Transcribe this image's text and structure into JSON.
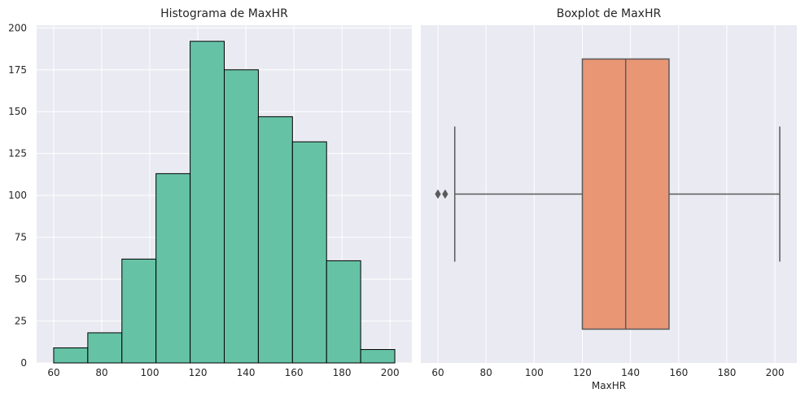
{
  "chart_data": [
    {
      "type": "histogram",
      "title": "Histograma de MaxHR",
      "xlabel": "",
      "ylabel": "",
      "bin_edges": [
        60,
        74.2,
        88.4,
        102.6,
        116.8,
        131,
        145.2,
        159.4,
        173.6,
        187.8,
        202
      ],
      "counts": [
        9,
        18,
        62,
        113,
        192,
        175,
        147,
        132,
        61,
        8
      ],
      "xlim": [
        52.9,
        209.1
      ],
      "ylim": [
        0,
        201.6
      ],
      "xticks": [
        60,
        80,
        100,
        120,
        140,
        160,
        180,
        200
      ],
      "yticks": [
        0,
        25,
        50,
        75,
        100,
        125,
        150,
        175,
        200
      ],
      "bar_color": "#66c2a5",
      "edge_color": "#000000",
      "grid": true,
      "background": "#eaeaf2"
    },
    {
      "type": "boxplot",
      "title": "Boxplot de MaxHR",
      "xlabel": "MaxHR",
      "ylabel": "",
      "min_whisker": 67,
      "q1": 120,
      "median": 138,
      "q3": 156,
      "max_whisker": 202,
      "outliers": [
        60,
        63
      ],
      "xlim": [
        52.9,
        209.1
      ],
      "xticks": [
        60,
        80,
        100,
        120,
        140,
        160,
        180,
        200
      ],
      "box_color": "#e99675",
      "line_color": "#5a5a5a",
      "grid": true,
      "background": "#eaeaf2"
    }
  ]
}
